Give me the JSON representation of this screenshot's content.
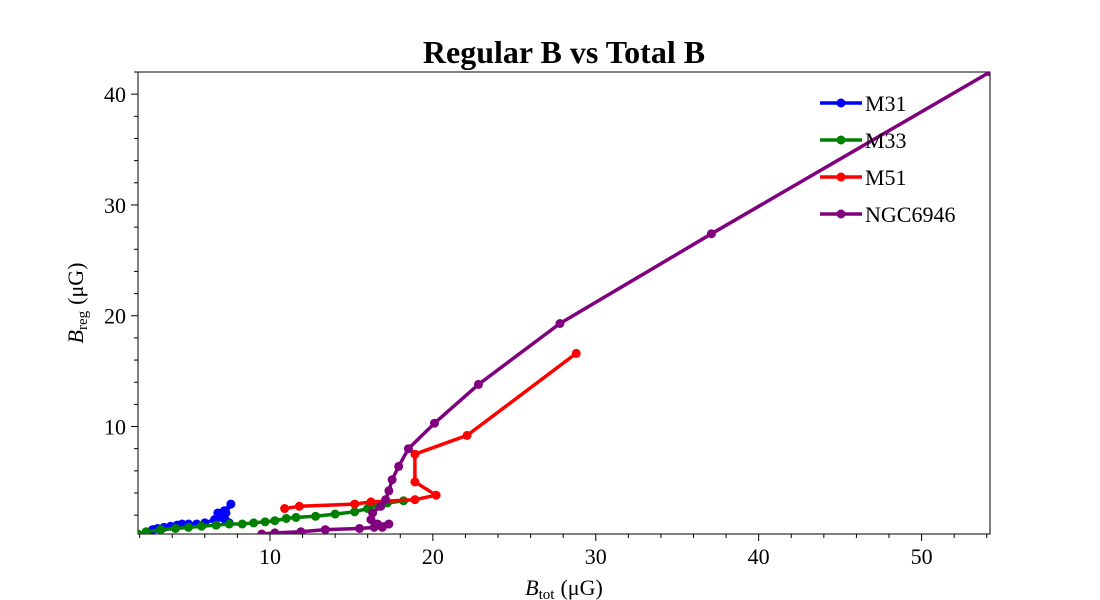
{
  "chart_data": {
    "type": "line",
    "title": "Regular B vs Total B",
    "xlabel": {
      "symbol": "B",
      "subscript": "tot",
      "unit": "(μG)"
    },
    "ylabel": {
      "symbol": "B",
      "subscript": "reg",
      "unit": "(μG)"
    },
    "xlim": [
      1.9,
      54.2
    ],
    "ylim": [
      0.3,
      42.0
    ],
    "x_ticks": [
      10,
      20,
      30,
      40,
      50
    ],
    "y_ticks": [
      10,
      20,
      30,
      40
    ],
    "x_tick_labels": [
      "10",
      "20",
      "30",
      "40",
      "50"
    ],
    "y_tick_labels": [
      "10",
      "20",
      "30",
      "40"
    ],
    "grid": false,
    "legend_position": "top-right",
    "series": [
      {
        "name": "M31",
        "color": "#0000ff",
        "points": [
          [
            7.5,
            1.3
          ],
          [
            7.3,
            1.5
          ],
          [
            7.0,
            1.8
          ],
          [
            6.8,
            2.2
          ],
          [
            7.2,
            2.4
          ],
          [
            7.6,
            3.0
          ],
          [
            7.3,
            2.2
          ],
          [
            6.6,
            1.6
          ],
          [
            6.0,
            1.3
          ],
          [
            5.5,
            1.2
          ],
          [
            5.0,
            1.2
          ],
          [
            4.6,
            1.2
          ],
          [
            4.3,
            1.1
          ],
          [
            3.9,
            1.0
          ],
          [
            3.5,
            0.9
          ],
          [
            3.1,
            0.8
          ],
          [
            2.8,
            0.7
          ]
        ]
      },
      {
        "name": "M33",
        "color": "#008000",
        "points": [
          [
            1.9,
            0.3
          ],
          [
            2.4,
            0.5
          ],
          [
            3.3,
            0.7
          ],
          [
            4.2,
            0.8
          ],
          [
            5.0,
            0.9
          ],
          [
            5.8,
            1.0
          ],
          [
            6.7,
            1.1
          ],
          [
            7.5,
            1.2
          ],
          [
            8.3,
            1.2
          ],
          [
            9.0,
            1.3
          ],
          [
            9.7,
            1.4
          ],
          [
            10.3,
            1.5
          ],
          [
            11.0,
            1.7
          ],
          [
            11.6,
            1.8
          ],
          [
            12.8,
            1.9
          ],
          [
            14.0,
            2.1
          ],
          [
            15.2,
            2.3
          ],
          [
            16.0,
            2.6
          ],
          [
            16.6,
            2.9
          ],
          [
            17.2,
            3.1
          ],
          [
            18.2,
            3.3
          ]
        ]
      },
      {
        "name": "M51",
        "color": "#ff0000",
        "points": [
          [
            28.8,
            16.6
          ],
          [
            22.1,
            9.2
          ],
          [
            18.9,
            7.5
          ],
          [
            18.9,
            5.0
          ],
          [
            20.2,
            3.8
          ],
          [
            18.9,
            3.4
          ],
          [
            16.2,
            3.2
          ],
          [
            15.2,
            3.0
          ],
          [
            11.8,
            2.8
          ],
          [
            10.9,
            2.6
          ]
        ]
      },
      {
        "name": "NGC6946",
        "color": "#800080",
        "points": [
          [
            54.2,
            42.0
          ],
          [
            37.1,
            27.4
          ],
          [
            27.8,
            19.3
          ],
          [
            22.8,
            13.8
          ],
          [
            20.1,
            10.3
          ],
          [
            18.5,
            8.0
          ],
          [
            17.9,
            6.4
          ],
          [
            17.5,
            5.2
          ],
          [
            17.3,
            4.2
          ],
          [
            17.1,
            3.4
          ],
          [
            16.8,
            2.8
          ],
          [
            16.3,
            2.2
          ],
          [
            16.2,
            1.6
          ],
          [
            16.6,
            1.2
          ],
          [
            17.3,
            1.2
          ],
          [
            16.9,
            0.9
          ],
          [
            16.4,
            0.9
          ],
          [
            15.5,
            0.8
          ],
          [
            13.4,
            0.7
          ],
          [
            11.9,
            0.5
          ],
          [
            10.3,
            0.4
          ],
          [
            9.5,
            0.3
          ]
        ]
      }
    ]
  }
}
